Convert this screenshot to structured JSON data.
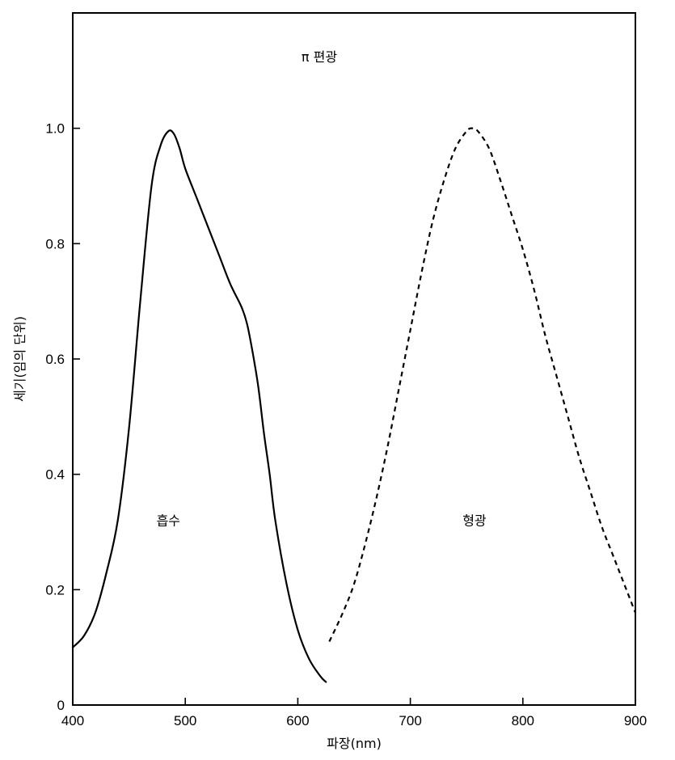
{
  "chart_data": {
    "type": "line",
    "title": "",
    "annotation_top": "π 편광",
    "xlabel": "파장(nm)",
    "ylabel": "세기(임의 단위)",
    "xlim": [
      400,
      900
    ],
    "ylim": [
      0,
      1.2
    ],
    "x_ticks": [
      400,
      500,
      600,
      700,
      800,
      900
    ],
    "x_tick_labels": [
      "400",
      "500",
      "600",
      "700",
      "800",
      "900"
    ],
    "y_ticks": [
      0,
      0.2,
      0.4,
      0.6,
      0.8,
      1.0
    ],
    "y_tick_labels": [
      "0",
      "0.2",
      "0.4",
      "0.6",
      "0.8",
      "1.0"
    ],
    "grid": false,
    "series": [
      {
        "name": "흡수",
        "style": "solid",
        "x": [
          400,
          410,
          420,
          430,
          440,
          450,
          460,
          470,
          478,
          485,
          490,
          495,
          500,
          510,
          520,
          530,
          540,
          550,
          555,
          560,
          565,
          570,
          575,
          580,
          590,
          600,
          610,
          620,
          625
        ],
        "y": [
          0.1,
          0.12,
          0.16,
          0.23,
          0.32,
          0.48,
          0.7,
          0.9,
          0.97,
          0.995,
          0.99,
          0.965,
          0.93,
          0.88,
          0.83,
          0.78,
          0.73,
          0.69,
          0.66,
          0.61,
          0.55,
          0.47,
          0.4,
          0.32,
          0.21,
          0.13,
          0.08,
          0.05,
          0.04
        ]
      },
      {
        "name": "형광",
        "style": "dashed",
        "x": [
          628,
          640,
          650,
          660,
          670,
          680,
          690,
          700,
          710,
          720,
          730,
          740,
          750,
          755,
          760,
          770,
          780,
          790,
          800,
          810,
          820,
          830,
          840,
          850,
          860,
          870,
          880,
          890,
          900
        ],
        "y": [
          0.11,
          0.16,
          0.21,
          0.28,
          0.36,
          0.45,
          0.55,
          0.65,
          0.75,
          0.84,
          0.91,
          0.965,
          0.995,
          1.0,
          0.995,
          0.965,
          0.91,
          0.85,
          0.79,
          0.72,
          0.64,
          0.57,
          0.5,
          0.43,
          0.37,
          0.31,
          0.26,
          0.21,
          0.16
        ]
      }
    ],
    "annotations": [
      {
        "text": "흡수",
        "x": 485,
        "y": 0.32
      },
      {
        "text": "형광",
        "x": 757,
        "y": 0.32
      }
    ]
  }
}
